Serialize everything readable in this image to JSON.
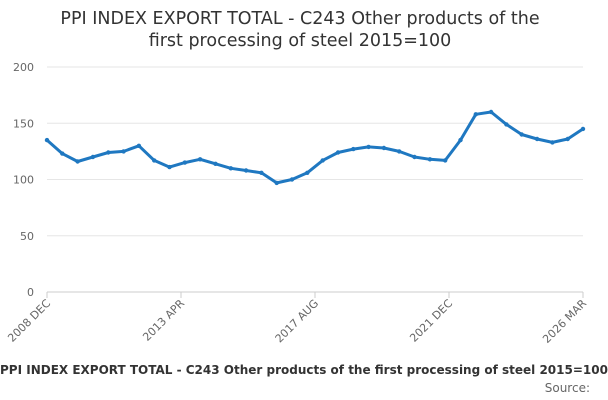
{
  "chart_data": {
    "type": "line",
    "title_line1": "PPI INDEX EXPORT TOTAL - C243 Other products of the",
    "title_line2": "first processing of steel 2015=100",
    "caption": "PPI INDEX EXPORT TOTAL - C243 Other products of the first processing of steel 2015=100",
    "source_label": "Source:",
    "xlabel": "",
    "ylabel": "",
    "ylim": [
      0,
      200
    ],
    "yticks": [
      "0",
      "50",
      "100",
      "150",
      "200"
    ],
    "xtick_labels": [
      "2008 DEC",
      "2013 APR",
      "2017 AUG",
      "2021 DEC",
      "2026 MAR"
    ],
    "grid": true,
    "series_color": "#1f78c1",
    "series": [
      {
        "name": "PPI INDEX EXPORT TOTAL - C243",
        "x": [
          "2008 DEC",
          "2009 JUN",
          "2009 DEC",
          "2010 JUN",
          "2010 DEC",
          "2011 JUN",
          "2011 DEC",
          "2012 JUN",
          "2012 DEC",
          "2013 JUN",
          "2013 DEC",
          "2014 JUN",
          "2014 DEC",
          "2015 JUN",
          "2015 DEC",
          "2016 JUN",
          "2016 DEC",
          "2017 JUN",
          "2017 DEC",
          "2018 JUN",
          "2018 DEC",
          "2019 JUN",
          "2019 DEC",
          "2020 JUN",
          "2020 DEC",
          "2021 JUN",
          "2021 DEC",
          "2022 JUN",
          "2022 DEC",
          "2023 JUN",
          "2023 DEC",
          "2024 JUN",
          "2024 DEC",
          "2025 JUN",
          "2025 DEC",
          "2026 MAR"
        ],
        "values": [
          135,
          123,
          116,
          120,
          124,
          125,
          130,
          117,
          111,
          115,
          118,
          114,
          110,
          108,
          106,
          97,
          100,
          106,
          117,
          124,
          127,
          129,
          128,
          125,
          120,
          118,
          117,
          135,
          158,
          160,
          149,
          140,
          136,
          133,
          136,
          145
        ]
      }
    ]
  }
}
